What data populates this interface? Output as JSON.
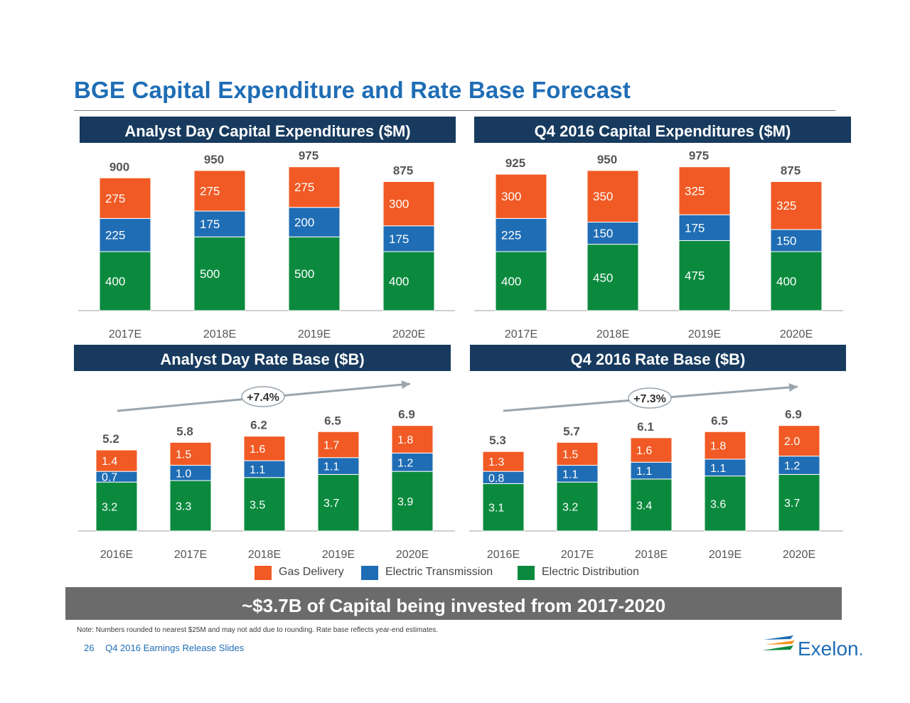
{
  "page": {
    "title": "BGE Capital Expenditure and Rate Base Forecast",
    "summary": "~$3.7B of Capital being invested from 2017-2020",
    "note": "Note:  Numbers rounded to nearest $25M and may not add due to rounding. Rate base reflects year-end estimates.",
    "page_number": "26",
    "footer_text": "Q4 2016  Earnings Release Slides",
    "logo_text": "Exelon."
  },
  "colors": {
    "gas": "#f15a24",
    "transmission": "#1f6db5",
    "distribution": "#0b8a3e",
    "band": "#173a5e",
    "title": "#1f6db5",
    "arrow": "#9aa5ad",
    "total_label": "#555555"
  },
  "legend": [
    {
      "label": "Gas Delivery",
      "color": "#f15a24"
    },
    {
      "label": "Electric Transmission",
      "color": "#1f6db5"
    },
    {
      "label": "Electric Distribution",
      "color": "#0b8a3e"
    }
  ],
  "chart_data": [
    {
      "type": "bar",
      "stacked": true,
      "title": "Analyst Day Capital Expenditures ($M)",
      "categories": [
        "2017E",
        "2018E",
        "2019E",
        "2020E"
      ],
      "series": [
        {
          "name": "Electric Distribution",
          "values": [
            400,
            500,
            500,
            400
          ]
        },
        {
          "name": "Electric Transmission",
          "values": [
            225,
            175,
            200,
            175
          ]
        },
        {
          "name": "Gas Delivery",
          "values": [
            275,
            275,
            275,
            300
          ]
        }
      ],
      "totals": [
        900,
        950,
        975,
        875
      ],
      "ylim": [
        0,
        1000
      ]
    },
    {
      "type": "bar",
      "stacked": true,
      "title": "Q4 2016 Capital Expenditures ($M)",
      "categories": [
        "2017E",
        "2018E",
        "2019E",
        "2020E"
      ],
      "series": [
        {
          "name": "Electric Distribution",
          "values": [
            400,
            450,
            475,
            400
          ]
        },
        {
          "name": "Electric Transmission",
          "values": [
            225,
            150,
            175,
            150
          ]
        },
        {
          "name": "Gas Delivery",
          "values": [
            300,
            350,
            325,
            325
          ]
        }
      ],
      "totals": [
        925,
        950,
        975,
        875
      ],
      "ylim": [
        0,
        1000
      ]
    },
    {
      "type": "bar",
      "stacked": true,
      "title": "Analyst Day Rate Base ($B)",
      "categories": [
        "2016E",
        "2017E",
        "2018E",
        "2019E",
        "2020E"
      ],
      "series": [
        {
          "name": "Electric Distribution",
          "values": [
            "3.2",
            "3.3",
            "3.5",
            "3.7",
            "3.9"
          ]
        },
        {
          "name": "Electric Transmission",
          "values": [
            "0.7",
            "1.0",
            "1.1",
            "1.1",
            "1.2"
          ]
        },
        {
          "name": "Gas Delivery",
          "values": [
            "1.4",
            "1.5",
            "1.6",
            "1.7",
            "1.8"
          ]
        }
      ],
      "totals": [
        "5.2",
        "5.8",
        "6.2",
        "6.5",
        "6.9"
      ],
      "growth_annotation": "+7.4%",
      "ylim": [
        0,
        8
      ]
    },
    {
      "type": "bar",
      "stacked": true,
      "title": "Q4 2016 Rate Base ($B)",
      "categories": [
        "2016E",
        "2017E",
        "2018E",
        "2019E",
        "2020E"
      ],
      "series": [
        {
          "name": "Electric Distribution",
          "values": [
            "3.1",
            "3.2",
            "3.4",
            "3.6",
            "3.7"
          ]
        },
        {
          "name": "Electric Transmission",
          "values": [
            "0.8",
            "1.1",
            "1.1",
            "1.1",
            "1.2"
          ]
        },
        {
          "name": "Gas Delivery",
          "values": [
            "1.3",
            "1.5",
            "1.6",
            "1.8",
            "2.0"
          ]
        }
      ],
      "totals": [
        "5.3",
        "5.7",
        "6.1",
        "6.5",
        "6.9"
      ],
      "growth_annotation": "+7.3%",
      "ylim": [
        0,
        8
      ]
    }
  ]
}
